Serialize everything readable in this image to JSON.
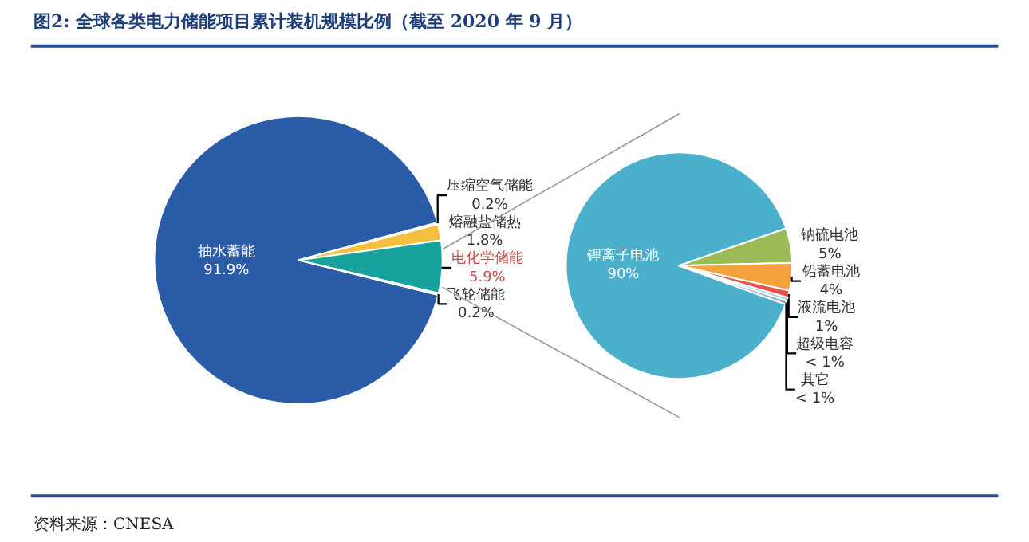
{
  "chart_data": [
    {
      "type": "pie",
      "title": "图2: 全球各类电力储能项目累计装机规模比例（截至 2020 年 9 月）",
      "annotations": [
        "资料来源：CNESA"
      ],
      "categories": [
        "抽水蓄能",
        "压缩空气储能",
        "熔融盐储热",
        "电化学储能",
        "飞轮储能"
      ],
      "values": [
        91.9,
        0.2,
        1.8,
        5.9,
        0.2
      ],
      "value_labels": [
        "91.9%",
        "0.2%",
        "1.8%",
        "5.9%",
        "0.2%"
      ],
      "colors": [
        "#2b5ca8",
        "#e8843a",
        "#f2c03c",
        "#17a29d",
        "#9dbfe0"
      ]
    },
    {
      "type": "pie",
      "categories": [
        "锂离子电池",
        "钠硫电池",
        "铅蓄电池",
        "液流电池",
        "超级电容",
        "其它"
      ],
      "values": [
        90,
        5,
        4,
        1,
        0.5,
        0.5
      ],
      "value_labels": [
        "90%",
        "5%",
        "4%",
        "1%",
        "< 1%",
        "< 1%"
      ],
      "colors": [
        "#4bb0cb",
        "#9bbb59",
        "#f6a23c",
        "#e8504f",
        "#a8d0e0",
        "#7fa8c8"
      ]
    }
  ]
}
